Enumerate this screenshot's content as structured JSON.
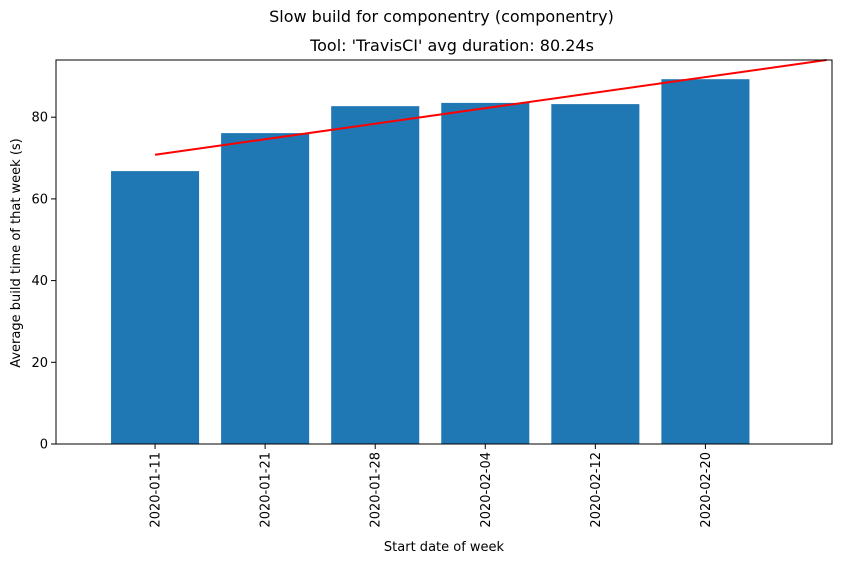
{
  "figure": {
    "suptitle": "Slow build for componentry (componentry)"
  },
  "chart_data": {
    "type": "bar",
    "title": "Tool: 'TravisCI' avg duration: 80.24s",
    "xlabel": "Start date of week",
    "ylabel": "Average build time of that week (s)",
    "categories": [
      "2020-01-11",
      "2020-01-21",
      "2020-01-28",
      "2020-02-04",
      "2020-02-12",
      "2020-02-20"
    ],
    "values": [
      66.8,
      76.1,
      82.7,
      83.5,
      83.2,
      89.3
    ],
    "ylim": [
      0,
      94
    ],
    "yticks": [
      0,
      20,
      40,
      60,
      80
    ],
    "bar_color": "#1f77b4",
    "trend": {
      "color": "#ff0000",
      "x": [
        0,
        6.1
      ],
      "y": [
        70.8,
        94
      ]
    },
    "grid": false,
    "legend": "none"
  }
}
